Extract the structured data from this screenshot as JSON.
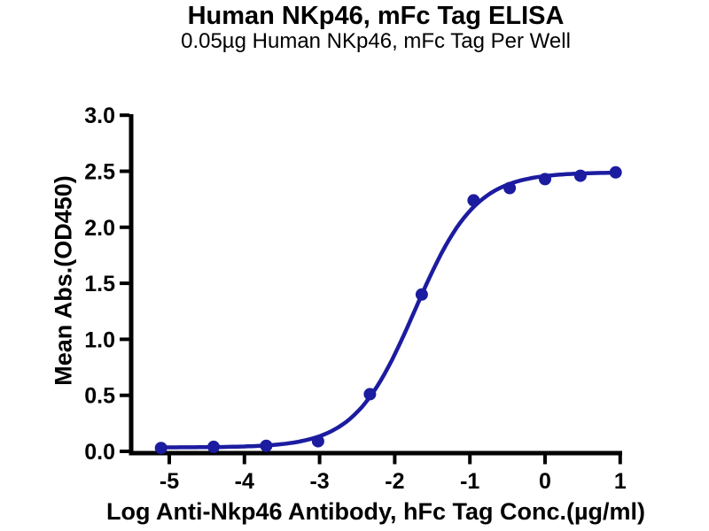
{
  "chart_data": {
    "type": "scatter",
    "title": "Human NKp46, mFc Tag ELISA",
    "subtitle": "0.05µg Human NKp46, mFc Tag Per Well",
    "xlabel": "Log Anti-Nkp46 Antibody, hFc Tag Conc.(µg/ml)",
    "ylabel": "Mean Abs.(OD450)",
    "xlim": [
      -5.5,
      1.05
    ],
    "ylim": [
      0,
      3.0
    ],
    "xticks": [
      -5,
      -4,
      -3,
      -2,
      -1,
      0,
      1
    ],
    "xtick_labels": [
      "-5",
      "-4",
      "-3",
      "-2",
      "-1",
      "0",
      "1"
    ],
    "yticks": [
      0,
      0.5,
      1.0,
      1.5,
      2.0,
      2.5,
      3.0
    ],
    "ytick_labels": [
      "0.0",
      "0.5",
      "1.0",
      "1.5",
      "2.0",
      "2.5",
      "3.0"
    ],
    "grid": false,
    "legend_position": "none",
    "series": [
      {
        "x": [
          -5.11,
          -4.41,
          -3.71,
          -3.02,
          -2.33,
          -1.64,
          -0.95,
          -0.47,
          0.0,
          0.47,
          0.94
        ],
        "y": [
          0.03,
          0.04,
          0.05,
          0.09,
          0.51,
          1.4,
          2.24,
          2.35,
          2.43,
          2.46,
          2.49
        ]
      }
    ],
    "fit_curve": {
      "model": "4PL",
      "bottom": 0.035,
      "top": 2.49,
      "logEC50": -1.73,
      "hillslope": 1.08
    },
    "colors": {
      "curve": "#1c1ca0",
      "marker": "#1c1ca0",
      "axis": "#000000",
      "text": "#000000"
    }
  }
}
